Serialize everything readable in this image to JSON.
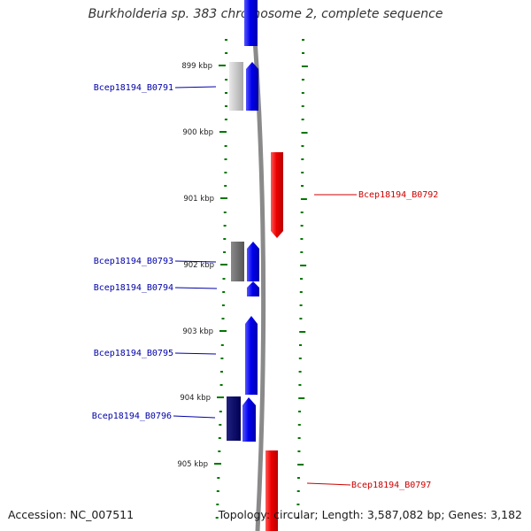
{
  "title": "Burkholderia sp. 383 chromosome 2, complete sequence",
  "footer": {
    "accession": "Accession: NC_007511",
    "summary": "Topology: circular; Length: 3,587,082 bp; Genes: 3,182"
  },
  "ruler": {
    "labels": [
      "899 kbp",
      "900 kbp",
      "901 kbp",
      "902 kbp",
      "903 kbp",
      "904 kbp",
      "905 kbp"
    ]
  },
  "genes": {
    "left_color": "#0000aa",
    "right_color": "#cc0000",
    "left": [
      "Bcep18194_B0791",
      "Bcep18194_B0793",
      "Bcep18194_B0794",
      "Bcep18194_B0795",
      "Bcep18194_B0796"
    ],
    "right": [
      "Bcep18194_B0792",
      "Bcep18194_B0797"
    ]
  },
  "colors": {
    "forward_strand": "#0000ee",
    "reverse_strand": "#ee0000",
    "backbone": "#888888",
    "ticks": "#007700"
  }
}
